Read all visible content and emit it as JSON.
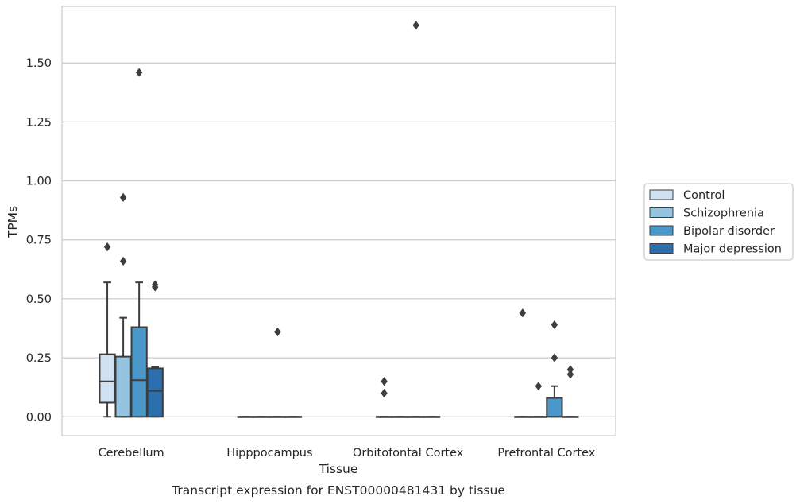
{
  "chart_data": {
    "type": "box",
    "title": "",
    "caption": "Transcript expression for ENST00000481431 by tissue",
    "xlabel": "Tissue",
    "ylabel": "TPMs",
    "ylim": [
      -0.08,
      1.74
    ],
    "yticks": [
      "0.00",
      "0.25",
      "0.50",
      "0.75",
      "1.00",
      "1.25",
      "1.50"
    ],
    "grid": true,
    "legend_position": "right",
    "categories": [
      "Cerebellum",
      "Hipppocampus",
      "Orbitofontal Cortex",
      "Prefrontal Cortex"
    ],
    "series": [
      {
        "name": "Control",
        "color": "#d0e1f2",
        "boxes": [
          {
            "q1": 0.06,
            "median": 0.15,
            "q3": 0.265,
            "whisker_low": 0.0,
            "whisker_high": 0.57,
            "outliers": [
              0.72
            ]
          },
          {
            "q1": 0.0,
            "median": 0.0,
            "q3": 0.0,
            "whisker_low": 0.0,
            "whisker_high": 0.0,
            "outliers": []
          },
          {
            "q1": 0.0,
            "median": 0.0,
            "q3": 0.0,
            "whisker_low": 0.0,
            "whisker_high": 0.0,
            "outliers": [
              0.15,
              0.1
            ]
          },
          {
            "q1": 0.0,
            "median": 0.0,
            "q3": 0.0,
            "whisker_low": 0.0,
            "whisker_high": 0.0,
            "outliers": [
              0.44
            ]
          }
        ]
      },
      {
        "name": "Schizophrenia",
        "color": "#94c4df",
        "boxes": [
          {
            "q1": 0.0,
            "median": 0.0,
            "q3": 0.255,
            "whisker_low": 0.0,
            "whisker_high": 0.42,
            "outliers": [
              0.93,
              0.66
            ]
          },
          {
            "q1": 0.0,
            "median": 0.0,
            "q3": 0.0,
            "whisker_low": 0.0,
            "whisker_high": 0.0,
            "outliers": []
          },
          {
            "q1": 0.0,
            "median": 0.0,
            "q3": 0.0,
            "whisker_low": 0.0,
            "whisker_high": 0.0,
            "outliers": []
          },
          {
            "q1": 0.0,
            "median": 0.0,
            "q3": 0.0,
            "whisker_low": 0.0,
            "whisker_high": 0.0,
            "outliers": [
              0.13
            ]
          }
        ]
      },
      {
        "name": "Bipolar disorder",
        "color": "#4a98c9",
        "boxes": [
          {
            "q1": 0.0,
            "median": 0.155,
            "q3": 0.38,
            "whisker_low": 0.0,
            "whisker_high": 0.57,
            "outliers": [
              1.46
            ]
          },
          {
            "q1": 0.0,
            "median": 0.0,
            "q3": 0.0,
            "whisker_low": 0.0,
            "whisker_high": 0.0,
            "outliers": [
              0.36
            ]
          },
          {
            "q1": 0.0,
            "median": 0.0,
            "q3": 0.0,
            "whisker_low": 0.0,
            "whisker_high": 0.0,
            "outliers": [
              1.66
            ]
          },
          {
            "q1": 0.0,
            "median": 0.0,
            "q3": 0.08,
            "whisker_low": 0.0,
            "whisker_high": 0.13,
            "outliers": [
              0.39,
              0.25
            ]
          }
        ]
      },
      {
        "name": "Major depression",
        "color": "#2b6faf",
        "boxes": [
          {
            "q1": 0.0,
            "median": 0.11,
            "q3": 0.205,
            "whisker_low": 0.0,
            "whisker_high": 0.21,
            "outliers": [
              0.56,
              0.55
            ]
          },
          {
            "q1": 0.0,
            "median": 0.0,
            "q3": 0.0,
            "whisker_low": 0.0,
            "whisker_high": 0.0,
            "outliers": []
          },
          {
            "q1": 0.0,
            "median": 0.0,
            "q3": 0.0,
            "whisker_low": 0.0,
            "whisker_high": 0.0,
            "outliers": []
          },
          {
            "q1": 0.0,
            "median": 0.0,
            "q3": 0.0,
            "whisker_low": 0.0,
            "whisker_high": 0.0,
            "outliers": [
              0.2,
              0.18
            ]
          }
        ]
      }
    ]
  }
}
